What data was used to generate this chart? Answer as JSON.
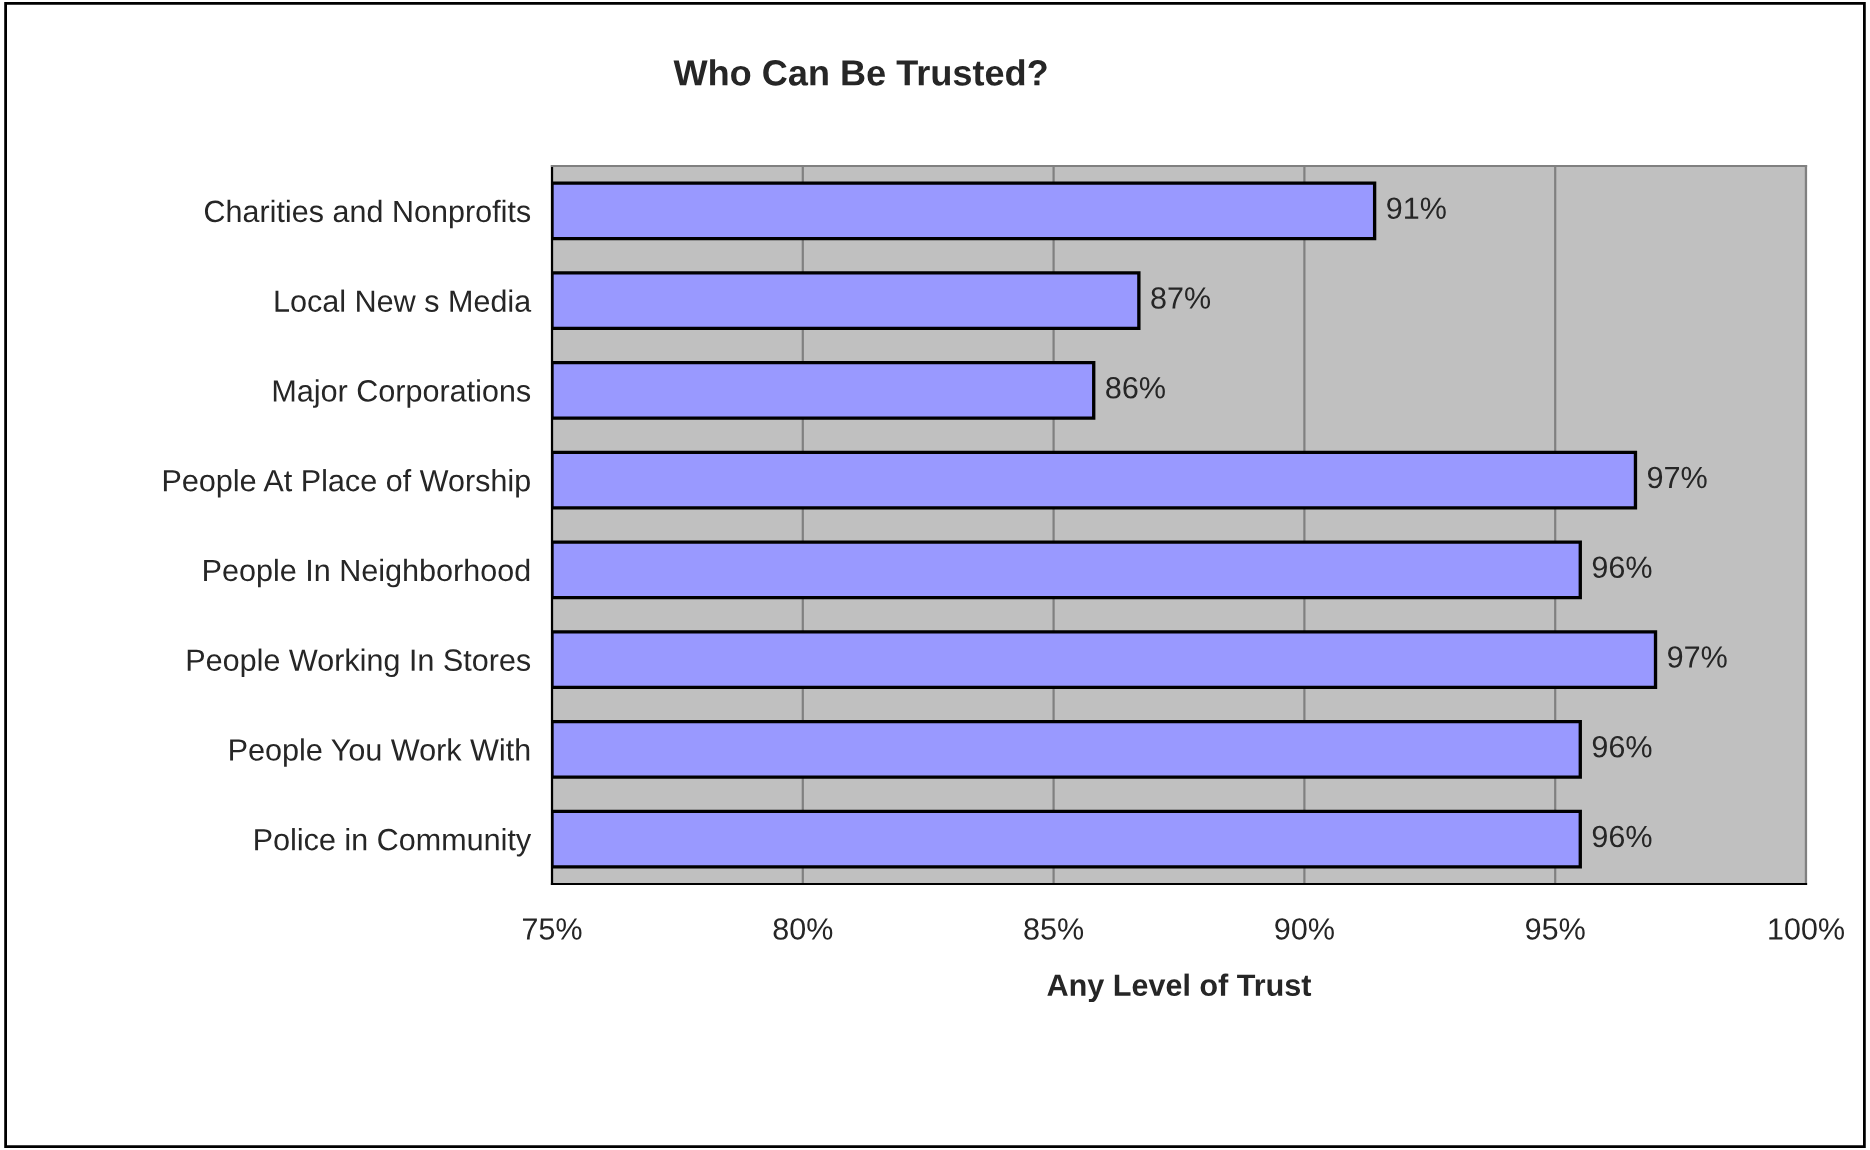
{
  "chart_data": {
    "type": "bar",
    "orientation": "horizontal",
    "title": "Who Can Be Trusted?",
    "xlabel": "Any Level of Trust",
    "categories": [
      "Charities and Nonprofits",
      "Local New s Media",
      "Major Corporations",
      "People At Place of Worship",
      "People In Neighborhood",
      "People Working In Stores",
      "People You Work With",
      "Police in Community"
    ],
    "values": [
      91.4,
      86.7,
      85.8,
      96.6,
      95.5,
      97.0,
      95.5,
      95.5
    ],
    "value_labels": [
      "91%",
      "87%",
      "86%",
      "97%",
      "96%",
      "97%",
      "96%",
      "96%"
    ],
    "color": "#9999ff",
    "xlim": [
      75,
      100
    ],
    "xticks": [
      {
        "value": 75,
        "label": "75%"
      },
      {
        "value": 80,
        "label": "80%"
      },
      {
        "value": 85,
        "label": "85%"
      },
      {
        "value": 90,
        "label": "90%"
      },
      {
        "value": 95,
        "label": "95%"
      },
      {
        "value": 100,
        "label": "100%"
      }
    ],
    "grid": "x",
    "legend": false
  }
}
